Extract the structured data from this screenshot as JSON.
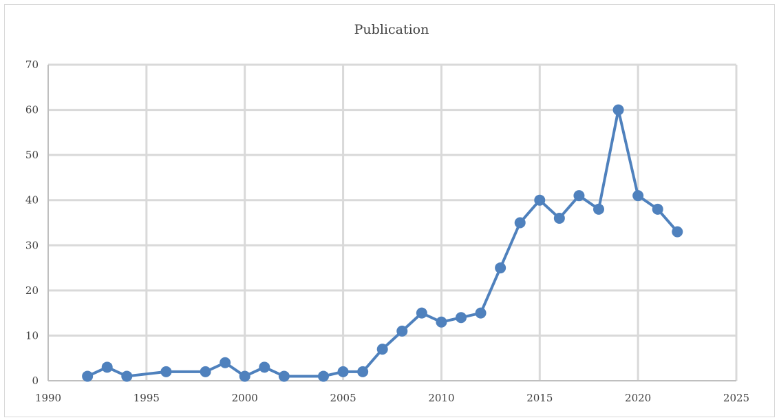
{
  "chart_data": {
    "type": "line",
    "title": "Publication",
    "xlabel": "",
    "ylabel": "",
    "xlim": [
      1990,
      2025
    ],
    "ylim": [
      0,
      70
    ],
    "xticks": [
      1990,
      1995,
      2000,
      2005,
      2010,
      2015,
      2020,
      2025
    ],
    "yticks": [
      0,
      10,
      20,
      30,
      40,
      50,
      60,
      70
    ],
    "grid": true,
    "legend": "none",
    "color": "#4f81bd",
    "series": [
      {
        "x": [
          1992,
          1993,
          1994,
          1996,
          1998,
          1999,
          2000,
          2001,
          2002,
          2004,
          2005,
          2006,
          2007,
          2008,
          2009,
          2010,
          2011,
          2012,
          2013,
          2014,
          2015,
          2016,
          2017,
          2018,
          2019,
          2020,
          2021,
          2022
        ],
        "y": [
          1,
          3,
          1,
          2,
          2,
          4,
          1,
          3,
          1,
          1,
          2,
          2,
          7,
          11,
          15,
          13,
          14,
          15,
          25,
          35,
          40,
          36,
          41,
          38,
          60,
          41,
          38,
          33
        ]
      }
    ]
  }
}
